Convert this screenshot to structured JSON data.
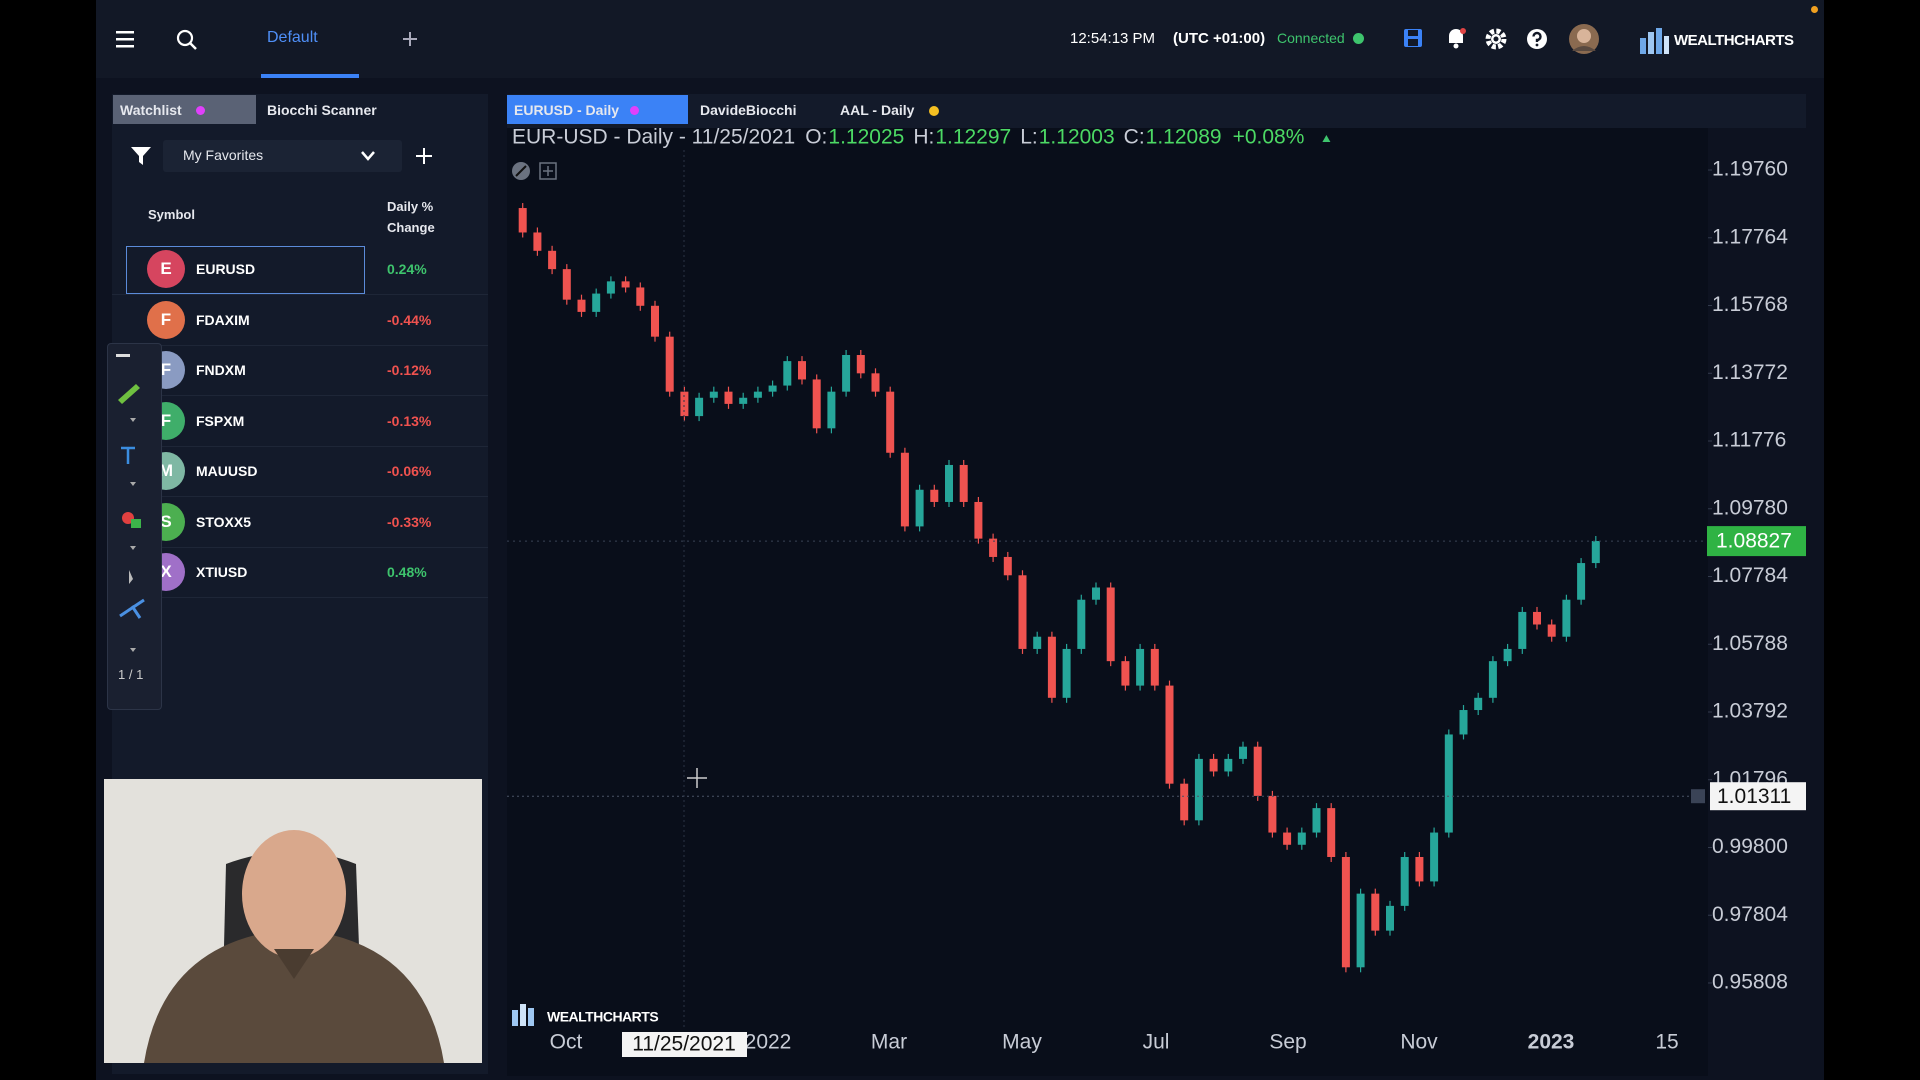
{
  "top_bar": {
    "layout_tab": "Default",
    "time": "12:54:13 PM",
    "timezone": "(UTC +01:00)",
    "status": "Connected",
    "brand": "WEALTHCHARTS"
  },
  "watchlist": {
    "tabs": [
      "Watchlist",
      "Biocchi Scanner"
    ],
    "list_name": "My Favorites",
    "columns": [
      "Symbol",
      "Daily % Change"
    ],
    "rows": [
      {
        "letter": "E",
        "symbol": "EURUSD",
        "change": "0.24%",
        "color": "#d6455f"
      },
      {
        "letter": "F",
        "symbol": "FDAXIM",
        "change": "-0.44%",
        "color": "#e0704a"
      },
      {
        "letter": "F",
        "symbol": "FNDXM",
        "change": "-0.12%",
        "color": "#8a9bc2"
      },
      {
        "letter": "F",
        "symbol": "FSPXM",
        "change": "-0.13%",
        "color": "#3fae6a"
      },
      {
        "letter": "M",
        "symbol": "MAUUSD",
        "change": "-0.06%",
        "color": "#7fb8a4"
      },
      {
        "letter": "S",
        "symbol": "STOXX5",
        "change": "-0.33%",
        "color": "#4caf50"
      },
      {
        "letter": "X",
        "symbol": "XTIUSD",
        "change": "0.48%",
        "color": "#a070c8"
      }
    ]
  },
  "drawing_toolbar": {
    "page": "1 / 1"
  },
  "chart_tabs": [
    "EURUSD - Daily",
    "DavideBiocchi",
    "AAL - Daily"
  ],
  "chart_data": {
    "type": "candlestick",
    "title": "EUR-USD - Daily - 11/25/2021",
    "ohlc": [
      {
        "label": "O:",
        "value": 1.12025
      },
      {
        "label": "H:",
        "value": 1.12297
      },
      {
        "label": "L:",
        "value": 1.12003
      },
      {
        "label": "C:",
        "value": 1.12089
      }
    ],
    "change": "+0.08%",
    "values": [
      1.1864,
      1.1792,
      1.1738,
      1.1684,
      1.1594,
      1.1558,
      1.1612,
      1.1648,
      1.163,
      1.1576,
      1.1485,
      1.1323,
      1.1251,
      1.1305,
      1.1323,
      1.1287,
      1.1305,
      1.1323,
      1.1341,
      1.1413,
      1.1359,
      1.1215,
      1.1323,
      1.1431,
      1.1377,
      1.1323,
      1.1143,
      1.0926,
      1.1034,
      1.0998,
      1.1107,
      1.0998,
      1.089,
      1.0836,
      1.0782,
      1.0565,
      1.0601,
      1.0421,
      1.0565,
      1.071,
      1.0746,
      1.0529,
      1.0457,
      1.0565,
      1.0457,
      1.0168,
      1.006,
      1.0241,
      1.0204,
      1.0241,
      1.0277,
      1.0132,
      1.0024,
      0.9988,
      1.0024,
      1.0096,
      0.9952,
      0.9627,
      0.9844,
      0.9735,
      0.9808,
      0.9952,
      0.988,
      1.0024,
      1.0313,
      1.0385,
      1.0421,
      1.0529,
      1.0565,
      1.0674,
      1.0637,
      1.0601,
      1.071,
      1.0818,
      1.0883
    ],
    "up_color": "#26a69a",
    "down_color": "#ef5350",
    "ylim": [
      0.9457,
      1.2035
    ],
    "yticks": [
      {
        "value": 1.1976,
        "label": "1.19760"
      },
      {
        "value": 1.17764,
        "label": "1.17764"
      },
      {
        "value": 1.15768,
        "label": "1.15768"
      },
      {
        "value": 1.13772,
        "label": "1.13772"
      },
      {
        "value": 1.11776,
        "label": "1.11776"
      },
      {
        "value": 1.0978,
        "label": "1.09780"
      },
      {
        "value": 1.07784,
        "label": "1.07784"
      },
      {
        "value": 1.05788,
        "label": "1.05788"
      },
      {
        "value": 1.03792,
        "label": "1.03792"
      },
      {
        "value": 1.01796,
        "label": "1.01796"
      },
      {
        "value": 0.998,
        "label": "0.99800"
      },
      {
        "value": 0.97804,
        "label": "0.97804"
      },
      {
        "value": 0.95808,
        "label": "0.95808"
      }
    ],
    "xtick_labels": [
      "Oct",
      "2022",
      "Mar",
      "May",
      "Jul",
      "Sep",
      "Nov",
      "2023",
      "15"
    ],
    "last_price": 1.08827,
    "crosshair_price": 1.01311,
    "crosshair_date": "11/25/2021",
    "watermark": "WEALTHCHARTS"
  }
}
